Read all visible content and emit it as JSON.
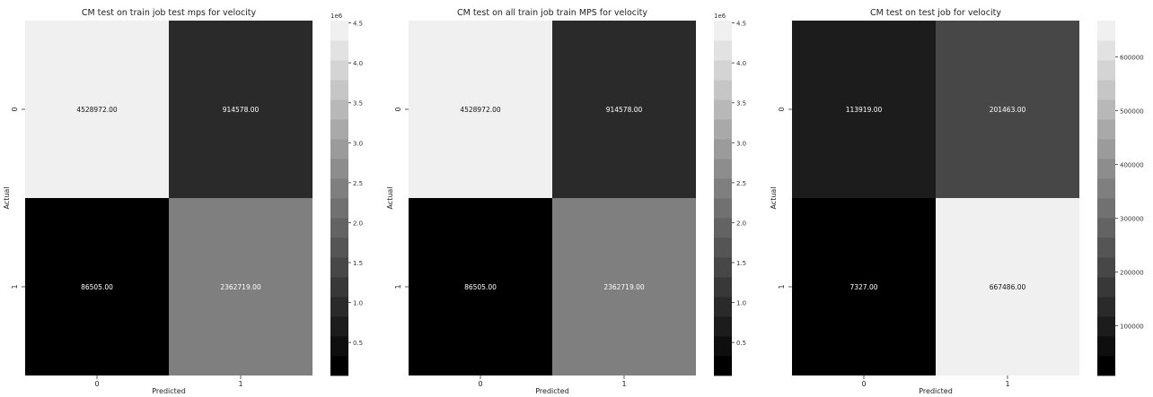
{
  "chart_data": [
    {
      "type": "heatmap",
      "title": "CM test on train job test mps for velocity",
      "xlabel": "Predicted",
      "ylabel": "Actual",
      "x_categories": [
        "0",
        "1"
      ],
      "y_categories": [
        "0",
        "1"
      ],
      "values": [
        [
          4528972,
          914578
        ],
        [
          86505,
          2362719
        ]
      ],
      "cell_labels": [
        [
          "4528972.00",
          "914578.00"
        ],
        [
          "86505.00",
          "2362719.00"
        ]
      ],
      "colormap": "greys (black = low, white = high), discrete levels",
      "colorbar": {
        "range": [
          86505,
          4528972
        ],
        "ticks": [
          0.5,
          1.0,
          1.5,
          2.0,
          2.5,
          3.0,
          3.5,
          4.0,
          4.5
        ],
        "tick_labels": [
          "0.5",
          "1.0",
          "1.5",
          "2.0",
          "2.5",
          "3.0",
          "3.5",
          "4.0",
          "4.5"
        ],
        "offset_label": "1e6"
      }
    },
    {
      "type": "heatmap",
      "title": "CM test on all train job train MPS for velocity",
      "xlabel": "Predicted",
      "ylabel": "Actual",
      "x_categories": [
        "0",
        "1"
      ],
      "y_categories": [
        "0",
        "1"
      ],
      "values": [
        [
          4528972,
          914578
        ],
        [
          86505,
          2362719
        ]
      ],
      "cell_labels": [
        [
          "4528972.00",
          "914578.00"
        ],
        [
          "86505.00",
          "2362719.00"
        ]
      ],
      "colormap": "greys (black = low, white = high), discrete levels",
      "colorbar": {
        "range": [
          86505,
          4528972
        ],
        "ticks": [
          0.5,
          1.0,
          1.5,
          2.0,
          2.5,
          3.0,
          3.5,
          4.0,
          4.5
        ],
        "tick_labels": [
          "0.5",
          "1.0",
          "1.5",
          "2.0",
          "2.5",
          "3.0",
          "3.5",
          "4.0",
          "4.5"
        ],
        "offset_label": "1e6"
      }
    },
    {
      "type": "heatmap",
      "title": "CM test on test job for velocity",
      "xlabel": "Predicted",
      "ylabel": "Actual",
      "x_categories": [
        "0",
        "1"
      ],
      "y_categories": [
        "0",
        "1"
      ],
      "values": [
        [
          113919,
          201463
        ],
        [
          7327,
          667486
        ]
      ],
      "cell_labels": [
        [
          "113919.00",
          "201463.00"
        ],
        [
          "7327.00",
          "667486.00"
        ]
      ],
      "colormap": "greys (black = low, white = high), discrete levels",
      "colorbar": {
        "range": [
          7327,
          667486
        ],
        "ticks": [
          100000,
          200000,
          300000,
          400000,
          500000,
          600000
        ],
        "tick_labels": [
          "100000",
          "200000",
          "300000",
          "400000",
          "500000",
          "600000"
        ],
        "offset_label": ""
      }
    }
  ]
}
